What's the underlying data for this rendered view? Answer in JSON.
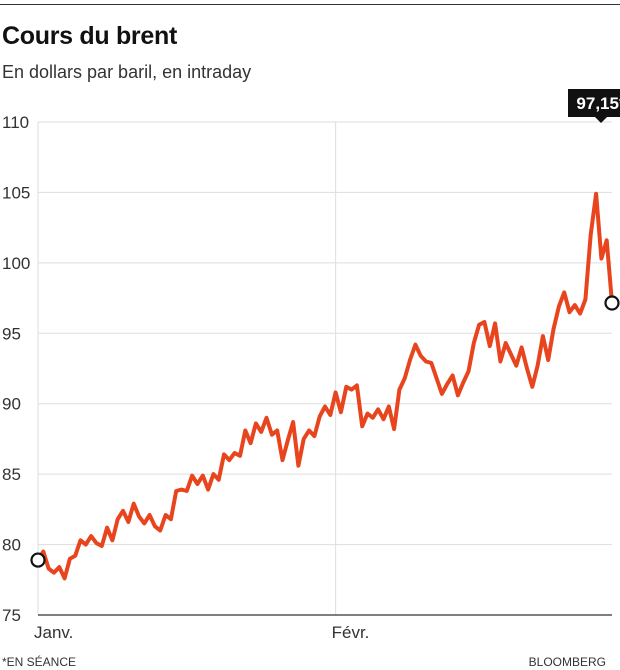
{
  "title": "Cours du brent",
  "subtitle": "En dollars par baril, en intraday",
  "footnote": "*EN SÉANCE",
  "source": "BLOOMBERG",
  "colors": {
    "line": "#e8451e",
    "grid": "#dddddd",
    "axis": "#333333",
    "callout_bg": "#111111"
  },
  "chart_data": {
    "type": "line",
    "title": "Cours du brent",
    "subtitle": "En dollars par baril, en intraday",
    "xlabel": "",
    "ylabel": "",
    "ylim": [
      75,
      110
    ],
    "yticks": [
      75,
      80,
      85,
      90,
      95,
      100,
      105,
      110
    ],
    "ytick_labels": [
      "75",
      "80",
      "85",
      "90",
      "95",
      "100",
      "105",
      "110"
    ],
    "x_unit": "trading days since start of January",
    "xlim": [
      0,
      54
    ],
    "xticks": [
      {
        "x": 0,
        "label": "Janv."
      },
      {
        "x": 28,
        "label": "Févr."
      }
    ],
    "grid": true,
    "legend": "none",
    "series": [
      {
        "values": [
          [
            0,
            78.9
          ],
          [
            0.5,
            79.5
          ],
          [
            1,
            78.3
          ],
          [
            1.5,
            78.0
          ],
          [
            2,
            78.4
          ],
          [
            2.5,
            77.6
          ],
          [
            3,
            79.0
          ],
          [
            3.5,
            79.2
          ],
          [
            4,
            80.3
          ],
          [
            4.5,
            80.0
          ],
          [
            5,
            80.6
          ],
          [
            5.5,
            80.1
          ],
          [
            6,
            79.9
          ],
          [
            6.5,
            81.2
          ],
          [
            7,
            80.3
          ],
          [
            7.5,
            81.8
          ],
          [
            8,
            82.4
          ],
          [
            8.5,
            81.6
          ],
          [
            9,
            82.9
          ],
          [
            9.5,
            82.0
          ],
          [
            10,
            81.5
          ],
          [
            10.5,
            82.1
          ],
          [
            11,
            81.3
          ],
          [
            11.5,
            81.0
          ],
          [
            12,
            82.1
          ],
          [
            12.5,
            81.8
          ],
          [
            13,
            83.8
          ],
          [
            13.5,
            83.9
          ],
          [
            14,
            83.8
          ],
          [
            14.5,
            84.9
          ],
          [
            15,
            84.3
          ],
          [
            15.5,
            84.9
          ],
          [
            16,
            83.9
          ],
          [
            16.5,
            85.0
          ],
          [
            17,
            84.6
          ],
          [
            17.5,
            86.4
          ],
          [
            18,
            86.0
          ],
          [
            18.5,
            86.5
          ],
          [
            19,
            86.3
          ],
          [
            19.5,
            88.1
          ],
          [
            20,
            87.2
          ],
          [
            20.5,
            88.6
          ],
          [
            21,
            88.0
          ],
          [
            21.5,
            89.0
          ],
          [
            22,
            87.8
          ],
          [
            22.5,
            88.1
          ],
          [
            23,
            86.0
          ],
          [
            23.5,
            87.4
          ],
          [
            24,
            88.7
          ],
          [
            24.5,
            85.6
          ],
          [
            25,
            87.5
          ],
          [
            25.5,
            88.1
          ],
          [
            26,
            87.7
          ],
          [
            26.5,
            89.1
          ],
          [
            27,
            89.8
          ],
          [
            27.5,
            89.2
          ],
          [
            28,
            90.8
          ],
          [
            28.5,
            89.4
          ],
          [
            29,
            91.2
          ],
          [
            29.5,
            91.0
          ],
          [
            30,
            91.3
          ],
          [
            30.5,
            88.4
          ],
          [
            31,
            89.3
          ],
          [
            31.5,
            89.0
          ],
          [
            32,
            89.6
          ],
          [
            32.5,
            88.9
          ],
          [
            33,
            89.8
          ],
          [
            33.5,
            88.2
          ],
          [
            34,
            91.0
          ],
          [
            34.5,
            91.8
          ],
          [
            35,
            93.1
          ],
          [
            35.5,
            94.2
          ],
          [
            36,
            93.4
          ],
          [
            36.5,
            93.0
          ],
          [
            37,
            92.9
          ],
          [
            37.5,
            91.8
          ],
          [
            38,
            90.7
          ],
          [
            38.5,
            91.4
          ],
          [
            39,
            92.0
          ],
          [
            39.5,
            90.6
          ],
          [
            40,
            91.5
          ],
          [
            40.5,
            92.3
          ],
          [
            41,
            94.3
          ],
          [
            41.5,
            95.6
          ],
          [
            42,
            95.8
          ],
          [
            42.5,
            94.1
          ],
          [
            43,
            95.7
          ],
          [
            43.5,
            93.0
          ],
          [
            44,
            94.3
          ],
          [
            44.5,
            93.5
          ],
          [
            45,
            92.7
          ],
          [
            45.5,
            94.0
          ],
          [
            46,
            92.5
          ],
          [
            46.5,
            91.2
          ],
          [
            47,
            92.7
          ],
          [
            47.5,
            94.8
          ],
          [
            48,
            93.1
          ],
          [
            48.5,
            95.3
          ],
          [
            49,
            96.9
          ],
          [
            49.5,
            97.9
          ],
          [
            50,
            96.5
          ],
          [
            50.5,
            97.0
          ],
          [
            51,
            96.4
          ],
          [
            51.5,
            97.4
          ],
          [
            52,
            102.0
          ],
          [
            52.5,
            104.9
          ],
          [
            53,
            100.3
          ],
          [
            53.5,
            101.6
          ],
          [
            54,
            97.15
          ]
        ]
      }
    ],
    "annotations": [
      {
        "x": 54,
        "y": 97.15,
        "label": "97,15*"
      }
    ],
    "marker_points": [
      {
        "x": 0,
        "y": 78.9
      },
      {
        "x": 54,
        "y": 97.15
      }
    ]
  }
}
